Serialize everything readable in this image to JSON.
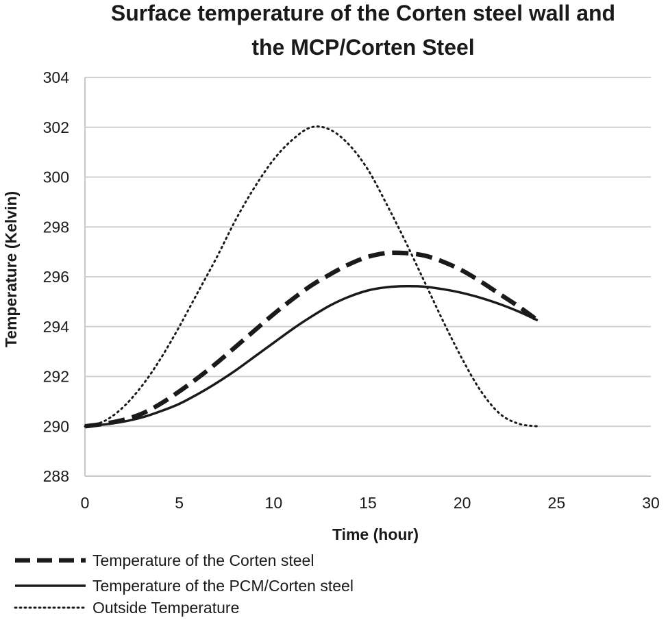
{
  "chart_data": {
    "type": "line",
    "title": [
      "Surface temperature of the Corten steel wall and",
      "the MCP/Corten Steel"
    ],
    "xlabel": "Time (hour)",
    "ylabel": "Temperature (Kelvin)",
    "xlim": [
      0,
      30
    ],
    "ylim": [
      288,
      304
    ],
    "xticks": [
      0,
      5,
      10,
      15,
      20,
      25,
      30
    ],
    "yticks": [
      288,
      290,
      292,
      294,
      296,
      298,
      300,
      302,
      304
    ],
    "grid": "horizontal",
    "legend_position": "bottom",
    "x": [
      0,
      1,
      2,
      3,
      4,
      5,
      6,
      7,
      8,
      9,
      10,
      11,
      12,
      13,
      14,
      15,
      16,
      17,
      18,
      19,
      20,
      21,
      22,
      23,
      24
    ],
    "series": [
      {
        "name": "Temperature of the Corten steel",
        "style": "dashed",
        "values": [
          290.0,
          290.1,
          290.25,
          290.5,
          290.9,
          291.4,
          291.95,
          292.55,
          293.2,
          293.85,
          294.5,
          295.1,
          295.65,
          296.1,
          296.5,
          296.8,
          296.95,
          296.95,
          296.85,
          296.6,
          296.25,
          295.8,
          295.3,
          294.8,
          294.25
        ]
      },
      {
        "name": "Temperature of the PCM/Corten steel",
        "style": "solid",
        "values": [
          290.0,
          290.07,
          290.18,
          290.35,
          290.6,
          290.9,
          291.3,
          291.75,
          292.25,
          292.8,
          293.35,
          293.9,
          294.4,
          294.85,
          295.2,
          295.45,
          295.58,
          295.62,
          295.6,
          295.5,
          295.35,
          295.15,
          294.9,
          294.6,
          294.25
        ]
      },
      {
        "name": "Outside Temperature",
        "style": "dotted",
        "values": [
          290.0,
          290.2,
          290.75,
          291.6,
          292.7,
          294.0,
          295.4,
          296.8,
          298.3,
          299.6,
          300.7,
          301.5,
          302.0,
          301.9,
          301.3,
          300.3,
          298.9,
          297.4,
          295.8,
          294.2,
          292.7,
          291.4,
          290.5,
          290.1,
          290.0
        ]
      }
    ]
  }
}
